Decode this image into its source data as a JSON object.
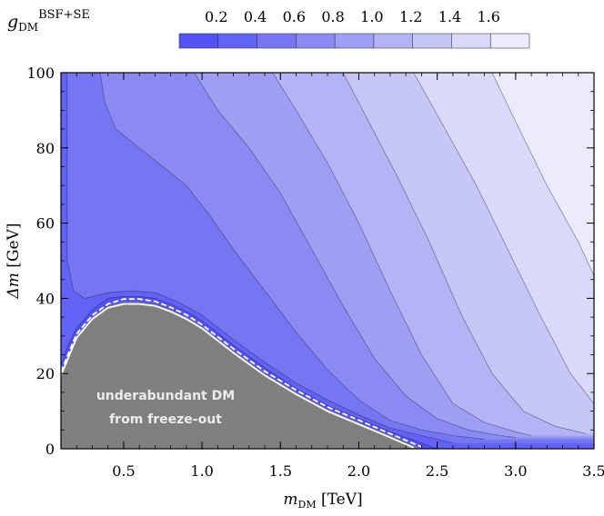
{
  "chart_data": {
    "type": "contour",
    "title": "",
    "colorbar": {
      "label_main": "g",
      "label_sub": "DM",
      "label_sup": "BSF+SE",
      "levels": [
        0.2,
        0.4,
        0.6,
        0.8,
        1.0,
        1.2,
        1.4,
        1.6
      ],
      "tick_labels": [
        "0.2",
        "0.4",
        "0.6",
        "0.8",
        "1.0",
        "1.2",
        "1.4",
        "1.6"
      ],
      "colors": [
        "#5151f4",
        "#6262f5",
        "#7676f3",
        "#8a8af3",
        "#9e9ef4",
        "#b3b3f5",
        "#c6c6f7",
        "#d9d9f9",
        "#ecebfb"
      ]
    },
    "x_axis": {
      "label": "m",
      "label_sub": "DM",
      "label_unit": "[TeV]",
      "range": [
        0.1,
        3.5
      ],
      "ticks": [
        0.5,
        1.0,
        1.5,
        2.0,
        2.5,
        3.0,
        3.5
      ],
      "tick_labels": [
        "0.5",
        "1.0",
        "1.5",
        "2.0",
        "2.5",
        "3.0",
        "3.5"
      ]
    },
    "y_axis": {
      "label": "Δm",
      "label_unit": "[GeV]",
      "range": [
        0,
        100
      ],
      "ticks": [
        0,
        20,
        40,
        60,
        80,
        100
      ],
      "tick_labels": [
        "0",
        "20",
        "40",
        "60",
        "80",
        "100"
      ]
    },
    "excluded_region": {
      "label_line1": "underabundant DM",
      "label_line2": "from freeze-out",
      "color": "#7f7f7f",
      "boundary": [
        [
          0.1,
          20
        ],
        [
          0.2,
          30
        ],
        [
          0.3,
          35
        ],
        [
          0.4,
          38
        ],
        [
          0.5,
          39
        ],
        [
          0.6,
          39
        ],
        [
          0.7,
          38.5
        ],
        [
          0.8,
          37
        ],
        [
          0.9,
          35
        ],
        [
          1.0,
          32.5
        ],
        [
          1.2,
          26
        ],
        [
          1.4,
          20
        ],
        [
          1.6,
          15
        ],
        [
          1.8,
          10.5
        ],
        [
          2.0,
          7
        ],
        [
          2.2,
          3.5
        ],
        [
          2.4,
          0
        ]
      ]
    },
    "contour_lines": [
      {
        "level": 0.2,
        "points": [
          [
            0.1,
            22
          ],
          [
            0.15,
            28
          ],
          [
            0.2,
            32
          ],
          [
            0.3,
            37
          ],
          [
            0.4,
            40
          ],
          [
            0.5,
            40.5
          ],
          [
            0.6,
            40.5
          ],
          [
            0.7,
            40
          ],
          [
            0.8,
            38.5
          ],
          [
            0.9,
            36.5
          ],
          [
            1.0,
            34
          ],
          [
            1.2,
            27.5
          ],
          [
            1.4,
            21.5
          ],
          [
            1.6,
            16
          ],
          [
            1.8,
            11.5
          ],
          [
            2.0,
            8
          ],
          [
            2.2,
            4.5
          ],
          [
            2.4,
            1.5
          ],
          [
            2.5,
            0
          ]
        ]
      },
      {
        "level": 0.4,
        "points": [
          [
            0.14,
            100
          ],
          [
            0.14,
            50
          ],
          [
            0.18,
            42
          ],
          [
            0.25,
            40
          ],
          [
            0.4,
            41.5
          ],
          [
            0.55,
            42
          ],
          [
            0.7,
            41.5
          ],
          [
            0.85,
            39
          ],
          [
            1.0,
            35.5
          ],
          [
            1.2,
            29
          ],
          [
            1.4,
            23
          ],
          [
            1.6,
            17.5
          ],
          [
            1.8,
            13
          ],
          [
            2.0,
            9
          ],
          [
            2.2,
            5.5
          ],
          [
            2.4,
            3.5
          ],
          [
            2.5,
            2.5
          ],
          [
            2.6,
            1.5
          ]
        ]
      },
      {
        "level": 0.6,
        "points": [
          [
            0.35,
            100
          ],
          [
            0.38,
            92
          ],
          [
            0.45,
            85
          ],
          [
            0.6,
            80
          ],
          [
            0.75,
            75
          ],
          [
            0.9,
            70
          ],
          [
            1.05,
            62
          ],
          [
            1.2,
            53
          ],
          [
            1.4,
            42
          ],
          [
            1.6,
            31
          ],
          [
            1.8,
            21
          ],
          [
            2.0,
            13
          ],
          [
            2.2,
            7.5
          ],
          [
            2.4,
            5
          ],
          [
            2.6,
            3.5
          ],
          [
            2.8,
            2.5
          ]
        ]
      },
      {
        "level": 0.8,
        "points": [
          [
            0.95,
            100
          ],
          [
            1.1,
            90
          ],
          [
            1.3,
            80
          ],
          [
            1.5,
            68
          ],
          [
            1.7,
            53
          ],
          [
            1.9,
            38
          ],
          [
            2.1,
            24
          ],
          [
            2.3,
            14
          ],
          [
            2.5,
            8
          ],
          [
            2.7,
            5
          ],
          [
            2.9,
            3.5
          ],
          [
            3.0,
            3
          ]
        ]
      },
      {
        "level": 1.0,
        "points": [
          [
            1.45,
            100
          ],
          [
            1.6,
            90
          ],
          [
            1.8,
            76
          ],
          [
            2.0,
            60
          ],
          [
            2.2,
            42
          ],
          [
            2.4,
            25
          ],
          [
            2.6,
            12
          ],
          [
            2.8,
            7
          ],
          [
            3.0,
            4.5
          ],
          [
            3.1,
            3.5
          ]
        ]
      },
      {
        "level": 1.2,
        "points": [
          [
            1.9,
            100
          ],
          [
            2.05,
            88
          ],
          [
            2.25,
            72
          ],
          [
            2.45,
            55
          ],
          [
            2.65,
            36
          ],
          [
            2.85,
            20
          ],
          [
            3.05,
            10
          ],
          [
            3.25,
            6
          ],
          [
            3.45,
            4
          ]
        ]
      },
      {
        "level": 1.4,
        "points": [
          [
            2.35,
            100
          ],
          [
            2.55,
            85
          ],
          [
            2.75,
            70
          ],
          [
            2.95,
            53
          ],
          [
            3.15,
            36
          ],
          [
            3.35,
            20
          ],
          [
            3.5,
            12
          ]
        ]
      },
      {
        "level": 1.6,
        "points": [
          [
            2.85,
            100
          ],
          [
            3.0,
            87
          ],
          [
            3.2,
            70
          ],
          [
            3.4,
            55
          ],
          [
            3.5,
            46
          ]
        ]
      }
    ],
    "dashed_boundaries": [
      {
        "color": "#ffffff",
        "style": "dashed",
        "points": [
          [
            0.1,
            20.5
          ],
          [
            0.2,
            30.5
          ],
          [
            0.3,
            35.5
          ],
          [
            0.4,
            38.5
          ],
          [
            0.5,
            39.8
          ],
          [
            0.6,
            39.8
          ],
          [
            0.7,
            39.2
          ],
          [
            0.8,
            37.6
          ],
          [
            0.9,
            35.6
          ],
          [
            1.0,
            33
          ],
          [
            1.2,
            26.6
          ],
          [
            1.4,
            20.6
          ],
          [
            1.6,
            15.6
          ],
          [
            1.8,
            11.1
          ],
          [
            2.0,
            7.6
          ],
          [
            2.2,
            4
          ],
          [
            2.4,
            0.5
          ]
        ]
      },
      {
        "color": "#ffffff",
        "style": "solid",
        "points": [
          [
            0.1,
            19.5
          ],
          [
            0.2,
            29.5
          ],
          [
            0.3,
            34.5
          ],
          [
            0.4,
            37.5
          ],
          [
            0.5,
            38.5
          ],
          [
            0.6,
            38.5
          ],
          [
            0.7,
            38
          ],
          [
            0.8,
            36.5
          ],
          [
            0.9,
            34.5
          ],
          [
            1.0,
            32
          ],
          [
            1.2,
            25.5
          ],
          [
            1.4,
            19.5
          ],
          [
            1.6,
            14.5
          ],
          [
            1.8,
            10
          ],
          [
            2.0,
            6.5
          ],
          [
            2.2,
            3
          ],
          [
            2.35,
            0.3
          ]
        ]
      }
    ]
  }
}
